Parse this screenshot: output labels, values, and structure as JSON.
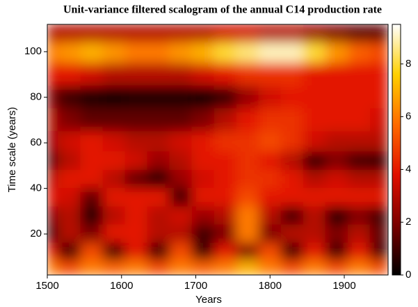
{
  "chart_data": {
    "type": "heatmap",
    "title": "Unit-variance filtered scalogram of the annual C14 production rate",
    "x_label": "Years",
    "y_label": "Time scale (years)",
    "x": [
      1500,
      1530,
      1560,
      1590,
      1620,
      1650,
      1680,
      1710,
      1740,
      1770,
      1800,
      1830,
      1860,
      1890,
      1920,
      1950
    ],
    "y": [
      108,
      100,
      90,
      80,
      70,
      60,
      52,
      44,
      36,
      28,
      20,
      12,
      5
    ],
    "z": [
      [
        3,
        3,
        3,
        3,
        3,
        3,
        3,
        3,
        3.5,
        3.5,
        3,
        3,
        2.5,
        2,
        1.5,
        1.5
      ],
      [
        6,
        6.5,
        7,
        6.5,
        6,
        6,
        6.5,
        7,
        8,
        8.5,
        9,
        9,
        8,
        6.5,
        5.5,
        5
      ],
      [
        4,
        4,
        3.5,
        3,
        3,
        3,
        3,
        3.5,
        4,
        4.5,
        4.5,
        4.5,
        4,
        4,
        4,
        4
      ],
      [
        2,
        1,
        0.5,
        0.3,
        0.5,
        0.5,
        0.5,
        0.3,
        1,
        2.5,
        3.5,
        4,
        4,
        4,
        4,
        4
      ],
      [
        3,
        2,
        1.5,
        1.5,
        1.5,
        1.5,
        1.5,
        2,
        3,
        4,
        4.5,
        4.5,
        4,
        4,
        4,
        3.5
      ],
      [
        2.5,
        3.5,
        4,
        3.5,
        3,
        3,
        3.5,
        4,
        4.5,
        4.5,
        5,
        4.5,
        3.5,
        3,
        3,
        3
      ],
      [
        1,
        3,
        4,
        4,
        3.5,
        2.5,
        3,
        4,
        4,
        4.5,
        4,
        3,
        0.8,
        2,
        1,
        0.8
      ],
      [
        3,
        4,
        4,
        3,
        1.5,
        0.5,
        2.5,
        3.5,
        4,
        4.5,
        4.5,
        4,
        3,
        3.5,
        3,
        3
      ],
      [
        4,
        3.5,
        1.5,
        4,
        4,
        4,
        1,
        4,
        4,
        5,
        4,
        4,
        4,
        4,
        4,
        4
      ],
      [
        2,
        3,
        0.5,
        3,
        4,
        3,
        3.5,
        2.5,
        3,
        6,
        3,
        1,
        3,
        0.5,
        2,
        1
      ],
      [
        0.5,
        3,
        2,
        4,
        4,
        3,
        3,
        1,
        2,
        6,
        2,
        3,
        3,
        2,
        3,
        1.5
      ],
      [
        4,
        1,
        5,
        1,
        4,
        1,
        5,
        1,
        4,
        2,
        5,
        1,
        4,
        1,
        4,
        1
      ],
      [
        6,
        5,
        6,
        5.5,
        6,
        5,
        6,
        5.5,
        6,
        7,
        6,
        5,
        6,
        5,
        6,
        5
      ]
    ],
    "xlim": [
      1500,
      1959
    ],
    "xticks": [
      1500,
      1600,
      1700,
      1800,
      1900
    ],
    "ylim": [
      2,
      112
    ],
    "yticks": [
      20,
      40,
      60,
      80,
      100
    ],
    "zlim": [
      0,
      9.5
    ],
    "zticks": [
      0,
      2,
      4,
      6,
      8
    ],
    "colormap": [
      "#000000",
      "#7a0000",
      "#e01000",
      "#ff6a00",
      "#ffd000",
      "#ffffff"
    ]
  }
}
